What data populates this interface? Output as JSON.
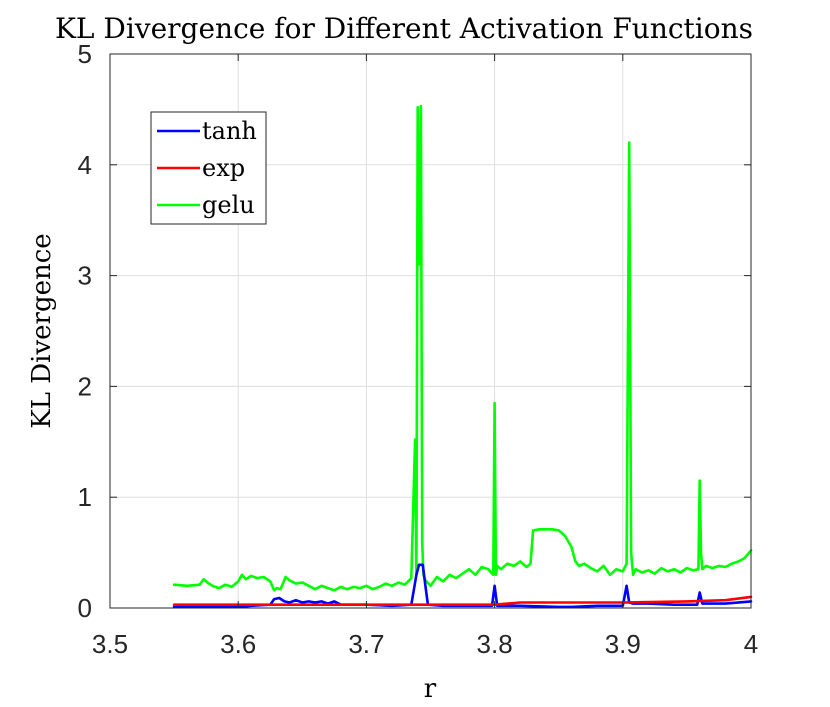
{
  "chart_data": {
    "type": "line",
    "title": "KL Divergence for Different Activation Functions",
    "xlabel": "r",
    "ylabel": "KL Divergence",
    "xlim": [
      3.5,
      4.0
    ],
    "ylim": [
      0,
      5
    ],
    "xticks": [
      3.5,
      3.6,
      3.7,
      3.8,
      3.9,
      4.0
    ],
    "xtick_labels": [
      "3.5",
      "3.6",
      "3.7",
      "3.8",
      "3.9",
      "4"
    ],
    "yticks": [
      0,
      1,
      2,
      3,
      4,
      5
    ],
    "ytick_labels": [
      "0",
      "1",
      "2",
      "3",
      "4",
      "5"
    ],
    "grid": true,
    "legend_position": "top-left",
    "series": [
      {
        "name": "tanh",
        "color": "#0000ff",
        "x": [
          3.55,
          3.6,
          3.61,
          3.625,
          3.628,
          3.632,
          3.636,
          3.64,
          3.645,
          3.65,
          3.655,
          3.66,
          3.665,
          3.67,
          3.675,
          3.68,
          3.7,
          3.72,
          3.735,
          3.739,
          3.741,
          3.744,
          3.746,
          3.748,
          3.76,
          3.78,
          3.798,
          3.8,
          3.802,
          3.805,
          3.82,
          3.85,
          3.86,
          3.88,
          3.9,
          3.903,
          3.905,
          3.908,
          3.92,
          3.94,
          3.958,
          3.96,
          3.962,
          3.965,
          3.98,
          4.0
        ],
        "y": [
          0.01,
          0.01,
          0.02,
          0.03,
          0.08,
          0.09,
          0.06,
          0.05,
          0.07,
          0.05,
          0.06,
          0.05,
          0.06,
          0.04,
          0.06,
          0.03,
          0.03,
          0.02,
          0.03,
          0.3,
          0.39,
          0.39,
          0.2,
          0.03,
          0.02,
          0.02,
          0.02,
          0.2,
          0.02,
          0.02,
          0.02,
          0.01,
          0.01,
          0.02,
          0.02,
          0.2,
          0.05,
          0.04,
          0.04,
          0.03,
          0.03,
          0.14,
          0.04,
          0.04,
          0.04,
          0.06
        ]
      },
      {
        "name": "exp",
        "color": "#ff0000",
        "x": [
          3.55,
          3.6,
          3.65,
          3.7,
          3.75,
          3.8,
          3.82,
          3.85,
          3.9,
          3.95,
          3.98,
          4.0
        ],
        "y": [
          0.03,
          0.03,
          0.03,
          0.03,
          0.03,
          0.03,
          0.05,
          0.05,
          0.05,
          0.06,
          0.07,
          0.1
        ]
      },
      {
        "name": "gelu",
        "color": "#00ff00",
        "x": [
          3.55,
          3.56,
          3.57,
          3.573,
          3.576,
          3.58,
          3.585,
          3.59,
          3.595,
          3.6,
          3.603,
          3.606,
          3.61,
          3.615,
          3.62,
          3.625,
          3.628,
          3.63,
          3.633,
          3.637,
          3.64,
          3.645,
          3.65,
          3.655,
          3.66,
          3.665,
          3.67,
          3.675,
          3.68,
          3.685,
          3.69,
          3.695,
          3.7,
          3.705,
          3.71,
          3.715,
          3.72,
          3.725,
          3.73,
          3.735,
          3.738,
          3.739,
          3.74,
          3.741,
          3.7425,
          3.7435,
          3.7445,
          3.746,
          3.75,
          3.755,
          3.76,
          3.765,
          3.77,
          3.775,
          3.78,
          3.785,
          3.79,
          3.795,
          3.799,
          3.8,
          3.801,
          3.802,
          3.805,
          3.81,
          3.815,
          3.82,
          3.825,
          3.828,
          3.83,
          3.835,
          3.84,
          3.845,
          3.85,
          3.855,
          3.86,
          3.863,
          3.866,
          3.87,
          3.875,
          3.88,
          3.885,
          3.89,
          3.895,
          3.9,
          3.903,
          3.905,
          3.9065,
          3.908,
          3.91,
          3.915,
          3.92,
          3.925,
          3.93,
          3.935,
          3.94,
          3.945,
          3.95,
          3.955,
          3.959,
          3.96,
          3.961,
          3.962,
          3.965,
          3.97,
          3.975,
          3.98,
          3.985,
          3.99,
          3.995,
          4.0
        ],
        "y": [
          0.21,
          0.2,
          0.21,
          0.26,
          0.23,
          0.2,
          0.18,
          0.21,
          0.19,
          0.24,
          0.3,
          0.26,
          0.29,
          0.27,
          0.28,
          0.24,
          0.16,
          0.18,
          0.17,
          0.28,
          0.25,
          0.22,
          0.23,
          0.2,
          0.17,
          0.2,
          0.18,
          0.16,
          0.19,
          0.17,
          0.19,
          0.18,
          0.2,
          0.17,
          0.19,
          0.22,
          0.2,
          0.23,
          0.21,
          0.27,
          1.52,
          0.3,
          4.52,
          3.1,
          4.53,
          0.6,
          0.3,
          0.25,
          0.2,
          0.28,
          0.24,
          0.3,
          0.27,
          0.31,
          0.35,
          0.3,
          0.37,
          0.35,
          0.3,
          1.85,
          0.3,
          0.38,
          0.35,
          0.4,
          0.38,
          0.42,
          0.37,
          0.4,
          0.7,
          0.71,
          0.71,
          0.71,
          0.7,
          0.65,
          0.55,
          0.42,
          0.38,
          0.4,
          0.36,
          0.33,
          0.38,
          0.3,
          0.35,
          0.33,
          0.4,
          4.2,
          0.5,
          0.3,
          0.35,
          0.32,
          0.34,
          0.31,
          0.36,
          0.33,
          0.35,
          0.32,
          0.36,
          0.34,
          0.35,
          1.15,
          0.5,
          0.35,
          0.38,
          0.36,
          0.38,
          0.37,
          0.4,
          0.42,
          0.45,
          0.52
        ]
      }
    ]
  }
}
